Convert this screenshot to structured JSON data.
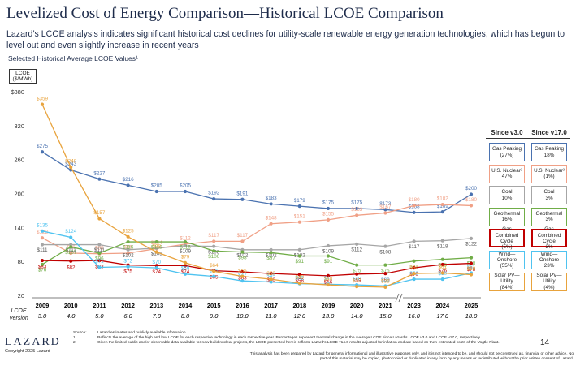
{
  "header": {
    "title": "Levelized Cost of Energy Comparison—Historical LCOE Comparison",
    "subtitle": "Lazard’s LCOE analysis indicates significant historical cost declines for utility-scale renewable energy generation technologies, which has begun to level out and even slightly increase in recent years",
    "section_label": "Selected Historical Average LCOE Values¹"
  },
  "chart_data": {
    "type": "line",
    "y_label": "LCOE ($/MWh)",
    "x_sub_label": "LCOE Version",
    "categories": [
      "2009",
      "2010",
      "2011",
      "2012",
      "2013",
      "2014",
      "2015",
      "2016",
      "2017",
      "2018",
      "2019",
      "2020",
      "2021",
      "2023",
      "2024",
      "2025"
    ],
    "versions": [
      "3.0",
      "4.0",
      "5.0",
      "6.0",
      "7.0",
      "8.0",
      "9.0",
      "10.0",
      "11.0",
      "12.0",
      "13.0",
      "14.0",
      "15.0",
      "16.0",
      "17.0",
      "18.0"
    ],
    "ylim": [
      20,
      380
    ],
    "yticks": [
      {
        "value": 380,
        "label": "$380"
      },
      320,
      260,
      200,
      140,
      80,
      20
    ],
    "change_headers": [
      "Since v3.0",
      "Since v17.0"
    ],
    "series": [
      {
        "name": "Gas Peaking",
        "color": "#4a72b0",
        "since_v3": "(27%)",
        "since_v17": "18%",
        "values": [
          275,
          243,
          227,
          216,
          205,
          205,
          192,
          191,
          183,
          179,
          175,
          175,
          173,
          168,
          169,
          200
        ],
        "value_labels": [
          "$275",
          "$243",
          "$227",
          "$216",
          "$205",
          "$205",
          "$192",
          "$191",
          "$183",
          "$179",
          "$175",
          "$175",
          "$173",
          "$168",
          "$169",
          "$200"
        ]
      },
      {
        "name": "U.S. Nuclear²",
        "color": "#f0a086",
        "since_v3": "47%",
        "since_v17": "(1%)",
        "values": [
          123,
          96,
          95,
          96,
          104,
          112,
          117,
          117,
          148,
          151,
          155,
          163,
          167,
          180,
          182,
          180
        ],
        "value_labels": [
          "$123",
          "$96",
          "$95",
          "$96",
          "$104",
          "$112",
          "$117",
          "$117",
          "$148",
          "$151",
          "$155",
          "$163",
          "$167",
          "$180",
          "$182",
          "$180"
        ]
      },
      {
        "name": "Coal",
        "color": "#a6a6a6",
        "since_v3": "10%",
        "since_v17": "3%",
        "values": [
          111,
          111,
          111,
          102,
          105,
          109,
          108,
          102,
          102,
          102,
          109,
          112,
          108,
          117,
          118,
          122
        ],
        "value_labels": [
          "$111",
          "$111",
          "$111",
          "$102",
          "$105",
          "$109",
          "$108",
          "$102",
          "$102",
          "$102",
          "$109",
          "$112",
          "$108",
          "$117",
          "$118",
          "$122"
        ]
      },
      {
        "name": "Geothermal",
        "color": "#70ad47",
        "since_v3": "16%",
        "since_v17": "3%",
        "values": [
          76,
          107,
          96,
          116,
          116,
          116,
          100,
          98,
          97,
          91,
          91,
          75,
          75,
          82,
          85,
          88
        ],
        "value_labels": [
          "$76",
          "$107",
          "$96",
          "$116",
          "$116",
          "$116",
          "$100",
          "$98",
          "$97",
          "$91",
          "$91",
          "$75",
          "$75",
          "$82",
          "$85",
          "$88"
        ]
      },
      {
        "name": "Gas Combined Cycle",
        "color": "#c00000",
        "since_v3": "(5%)",
        "since_v17": "3%",
        "values": [
          83,
          82,
          83,
          75,
          74,
          74,
          65,
          63,
          60,
          58,
          56,
          59,
          60,
          70,
          76,
          78
        ],
        "value_labels": [
          "$83",
          "$82",
          "$83",
          "$75",
          "$74",
          "$74",
          "$65",
          "$63",
          "$60",
          "$58",
          "$56",
          "$59",
          "$60",
          "$70",
          "$76",
          "$78"
        ]
      },
      {
        "name": "Wind—Onshore",
        "color": "#4fc3f0",
        "since_v3": "(55%)",
        "since_v17": "23%",
        "values": [
          135,
          124,
          71,
          72,
          70,
          59,
          55,
          47,
          45,
          42,
          41,
          40,
          38,
          50,
          50,
          61
        ],
        "value_labels": [
          "$135",
          "$124",
          "$71",
          "$72",
          "$70",
          "$59",
          "$55",
          "$47",
          "$45",
          "$42",
          "$41",
          "$40",
          "$38",
          "$50",
          "$50",
          "$61"
        ]
      },
      {
        "name": "Solar PV—Utility",
        "color": "#e8a33d",
        "since_v3": "(84%)",
        "since_v17": "(4%)",
        "values": [
          359,
          248,
          157,
          125,
          98,
          79,
          64,
          55,
          50,
          43,
          40,
          37,
          36,
          60,
          61,
          58
        ],
        "value_labels": [
          "$359",
          "$248",
          "$157",
          "$125",
          "$98",
          "$79",
          "$64",
          "$55",
          "$50",
          "$43",
          "$40",
          "$37",
          "$36",
          "$60",
          "$61",
          "$58"
        ]
      }
    ]
  },
  "footer": {
    "logo": "LAZARD",
    "copyright": "Copyright 2025 Lazard",
    "source_key": "Source:",
    "source": "Lazard estimates and publicly available information.",
    "note1_key": "1",
    "note1": "Reflects the average of the high and low LCOE for each respective technology in each respective year. Percentages represent the total change in the average LCOE since Lazard’s LCOE v3.0 and LCOE v17.0, respectively.",
    "note2_key": "2",
    "note2": "Given the limited public and/or observable data available for new-build nuclear projects, the LCOE presented herein reflects Lazard’s LCOE v14.0 results adjusted for inflation and are based on then-estimated costs of the Vogtle Plant.",
    "page": "14",
    "disclaimer": "This analysis has been prepared by Lazard for general informational and illustrative purposes only, and it is not intended to be, and should not be construed as, financial or other advice. No part of this material may be copied, photocopied or duplicated in any form by any means or redistributed without the prior written consent of Lazard."
  }
}
